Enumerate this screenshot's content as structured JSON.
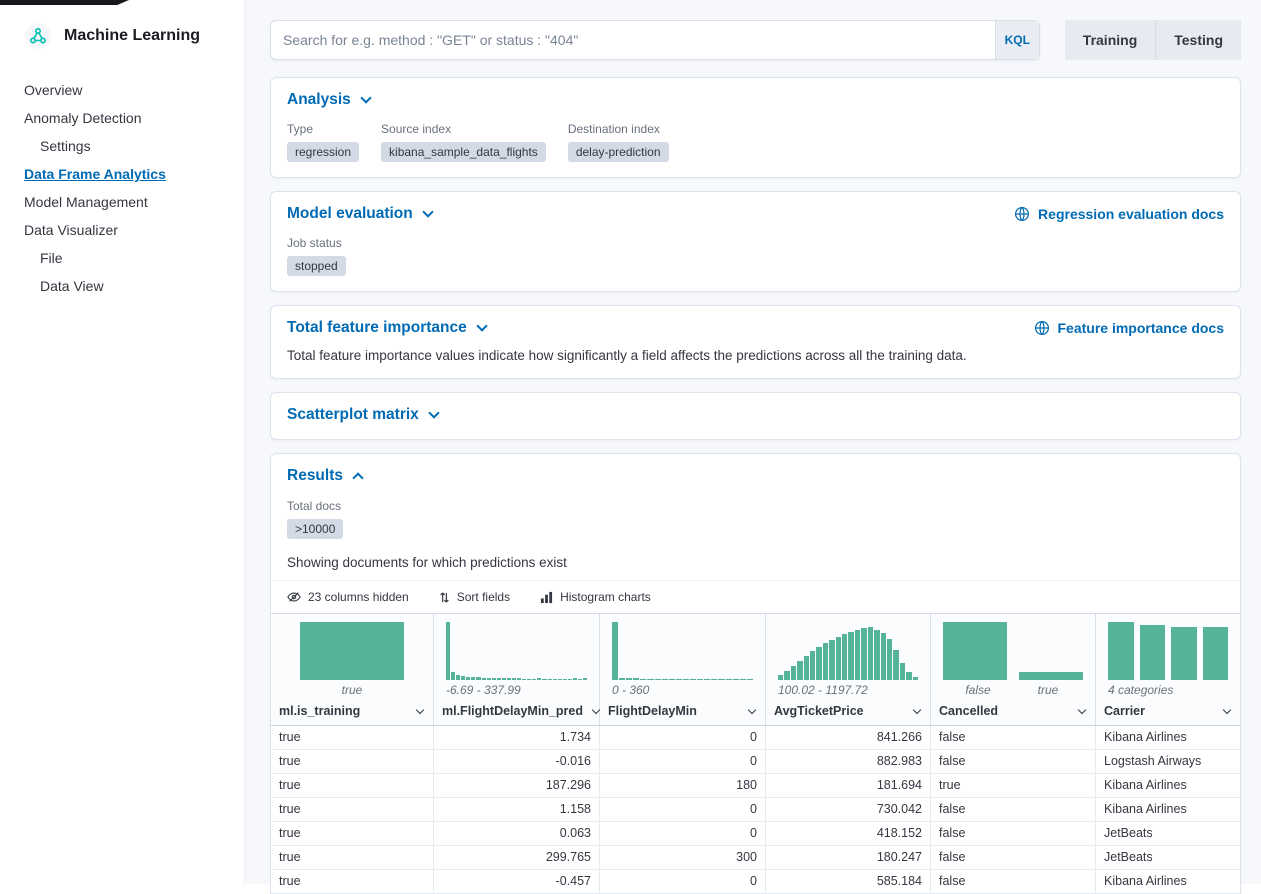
{
  "chrome": {
    "app_title": "Machine Learning"
  },
  "sidebar": {
    "items": [
      {
        "label": "Overview"
      },
      {
        "label": "Anomaly Detection"
      },
      {
        "label": "Settings"
      },
      {
        "label": "Data Frame Analytics"
      },
      {
        "label": "Model Management"
      },
      {
        "label": "Data Visualizer"
      },
      {
        "label": "File"
      },
      {
        "label": "Data View"
      }
    ]
  },
  "search": {
    "placeholder": "Search for e.g. method : \"GET\" or status : \"404\"",
    "kql_label": "KQL"
  },
  "mode_toggle": {
    "training_label": "Training",
    "testing_label": "Testing"
  },
  "panels": {
    "analysis": {
      "title": "Analysis",
      "fields": [
        {
          "label": "Type",
          "value": "regression"
        },
        {
          "label": "Source index",
          "value": "kibana_sample_data_flights"
        },
        {
          "label": "Destination index",
          "value": "delay-prediction"
        }
      ]
    },
    "model_evaluation": {
      "title": "Model evaluation",
      "docs_link": "Regression evaluation docs",
      "job_status_label": "Job status",
      "job_status_value": "stopped"
    },
    "feature_importance": {
      "title": "Total feature importance",
      "docs_link": "Feature importance docs",
      "description": "Total feature importance values indicate how significantly a field affects the predictions across all the training data."
    },
    "scatterplot": {
      "title": "Scatterplot matrix"
    },
    "results": {
      "title": "Results",
      "total_docs_label": "Total docs",
      "total_docs_value": ">10000",
      "subtitle": "Showing documents for which predictions exist",
      "toolbar": {
        "columns_hidden_label": "23 columns hidden",
        "sort_fields_label": "Sort fields",
        "histogram_charts_label": "Histogram charts"
      }
    }
  },
  "grid": {
    "columns": [
      {
        "name": "ml.is_training",
        "align": "left",
        "range_labels": [
          "true"
        ],
        "range_align": "center",
        "histo_style": "single",
        "histogram": [
          100
        ]
      },
      {
        "name": "ml.FlightDelayMin_pred",
        "align": "right",
        "range_labels": [
          "-6.69 - 337.99"
        ],
        "range_align": "left",
        "histo_style": "dense",
        "histogram": [
          100,
          14,
          9,
          7,
          6,
          5,
          5,
          4,
          4,
          4,
          3,
          3,
          3,
          3,
          3,
          2,
          2,
          2,
          3,
          2,
          2,
          2,
          2,
          2,
          2,
          3,
          2,
          3
        ]
      },
      {
        "name": "FlightDelayMin",
        "align": "right",
        "range_labels": [
          "0 - 360"
        ],
        "range_align": "left",
        "histo_style": "dense",
        "histogram": [
          100,
          4,
          3,
          3,
          2,
          2,
          2,
          2,
          2,
          1,
          2,
          1,
          1,
          1,
          2,
          1,
          1,
          2,
          1,
          2
        ]
      },
      {
        "name": "AvgTicketPrice",
        "align": "right",
        "range_labels": [
          "100.02 - 1197.72"
        ],
        "range_align": "left",
        "histo_style": "dense",
        "histogram": [
          8,
          15,
          24,
          33,
          42,
          50,
          57,
          63,
          69,
          74,
          79,
          83,
          86,
          89,
          91,
          87,
          81,
          70,
          52,
          30,
          13,
          5
        ]
      },
      {
        "name": "Cancelled",
        "align": "left",
        "range_labels": [
          "false",
          "true"
        ],
        "range_align": "split",
        "histo_style": "pair",
        "histogram": [
          100,
          13
        ]
      },
      {
        "name": "Carrier",
        "align": "left",
        "range_labels": [
          "4 categories"
        ],
        "range_align": "left",
        "histo_style": "wide",
        "histogram": [
          100,
          95,
          91,
          91
        ]
      }
    ],
    "rows": [
      [
        "true",
        "1.734",
        "0",
        "841.266",
        "false",
        "Kibana Airlines"
      ],
      [
        "true",
        "-0.016",
        "0",
        "882.983",
        "false",
        "Logstash Airways"
      ],
      [
        "true",
        "187.296",
        "180",
        "181.694",
        "true",
        "Kibana Airlines"
      ],
      [
        "true",
        "1.158",
        "0",
        "730.042",
        "false",
        "Kibana Airlines"
      ],
      [
        "true",
        "0.063",
        "0",
        "418.152",
        "false",
        "JetBeats"
      ],
      [
        "true",
        "299.765",
        "300",
        "180.247",
        "false",
        "JetBeats"
      ],
      [
        "true",
        "-0.457",
        "0",
        "585.184",
        "false",
        "Kibana Airlines"
      ]
    ]
  },
  "icons": {
    "app_logo": "ml-app-icon",
    "accordion": "chevron-icon",
    "docs": "documentation-icon",
    "columns_hidden": "eye-closed-icon",
    "sort": "sort-arrows-icon",
    "histogram": "histogram-icon"
  },
  "colors": {
    "link_blue": "#006BB4",
    "histogram_teal": "#54B399",
    "badge_gray": "#D3DAE6",
    "page_background": "#F7F8FC"
  }
}
